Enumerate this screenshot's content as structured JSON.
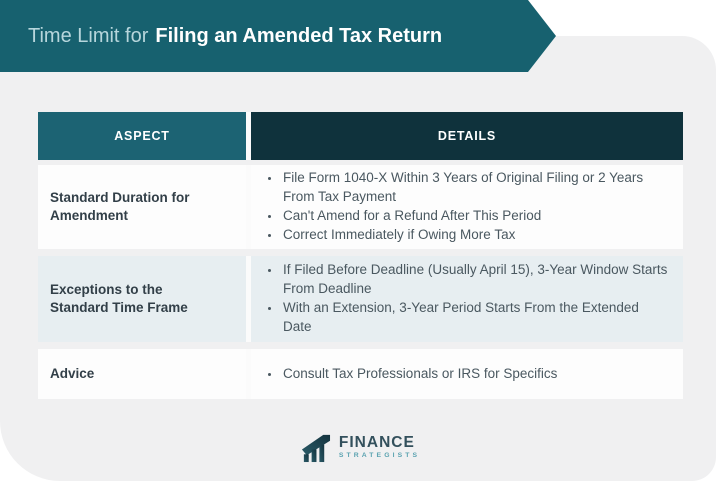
{
  "banner": {
    "title_regular": "Time Limit for",
    "title_bold": "Filing an Amended Tax Return"
  },
  "chart_data": {
    "type": "table",
    "title": "Time Limit for Filing an Amended Tax Return",
    "columns": [
      "ASPECT",
      "DETAILS"
    ],
    "rows": [
      {
        "aspect": "Standard Duration for Amendment",
        "details": [
          "File Form 1040-X Within 3 Years of Original Filing or 2 Years From Tax Payment",
          "Can't Amend for a Refund After This Period",
          "Correct Immediately if Owing More Tax"
        ]
      },
      {
        "aspect": "Exceptions to the Standard Time Frame",
        "details": [
          "If Filed Before Deadline (Usually April 15), 3-Year Window Starts From Deadline",
          "With an Extension, 3-Year Period Starts From the Extended Date"
        ]
      },
      {
        "aspect": "Advice",
        "details": [
          "Consult Tax Professionals or IRS for Specifics"
        ]
      }
    ],
    "layout": {
      "alternating_row_color": "#e7eef1",
      "header_colors": [
        "#1c6373",
        "#0f323c"
      ]
    }
  },
  "footer": {
    "brand_primary": "FINANCE",
    "brand_secondary": "STRATEGISTS"
  },
  "colors": {
    "banner_teal": "#17616f",
    "banner_text_light": "#b7d6dc",
    "header_aspect_bg": "#1c6373",
    "header_details_bg": "#0f323c",
    "row_alt_bg": "#e7eef1",
    "panel_bg": "#f0f0f1",
    "body_text": "#4a5860",
    "aspect_text": "#323f48",
    "logo_teal": "#5aa2b0"
  }
}
